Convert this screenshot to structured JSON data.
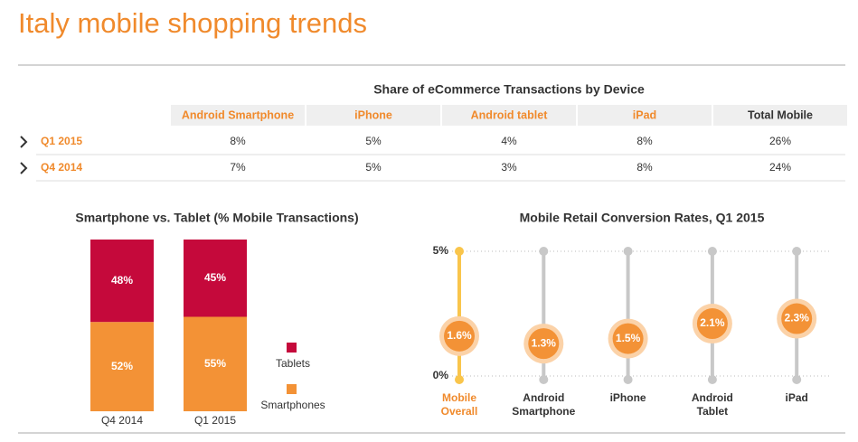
{
  "title": "Italy mobile shopping trends",
  "table": {
    "title": "Share of eCommerce Transactions by Device",
    "columns": [
      "Android Smartphone",
      "iPhone",
      "Android tablet",
      "iPad",
      "Total Mobile"
    ],
    "rows": [
      {
        "label": "Q1 2015",
        "cells": [
          "8%",
          "5%",
          "4%",
          "8%",
          "26%"
        ]
      },
      {
        "label": "Q4 2014",
        "cells": [
          "7%",
          "5%",
          "3%",
          "8%",
          "24%"
        ]
      }
    ]
  },
  "chart_data": [
    {
      "type": "stacked_bar",
      "title": "Smartphone vs. Tablet (% Mobile Transactions)",
      "categories": [
        "Q4 2014",
        "Q1 2015"
      ],
      "ylim": [
        0,
        100
      ],
      "series": [
        {
          "name": "Smartphones",
          "color": "#f39236",
          "values": [
            52,
            55
          ],
          "value_labels": [
            "52%",
            "55%"
          ]
        },
        {
          "name": "Tablets",
          "color": "#c5093b",
          "values": [
            48,
            45
          ],
          "value_labels": [
            "48%",
            "45%"
          ]
        }
      ]
    },
    {
      "type": "lollipop",
      "title": "Mobile Retail Conversion Rates, Q1 2015",
      "categories": [
        "Mobile Overall",
        "Android Smartphone",
        "iPhone",
        "Android Tablet",
        "iPad"
      ],
      "values": [
        1.6,
        1.3,
        1.5,
        2.1,
        2.3
      ],
      "value_labels": [
        "1.6%",
        "1.3%",
        "1.5%",
        "2.1%",
        "2.3%"
      ],
      "ylim": [
        0,
        5
      ],
      "yticks": [
        {
          "value": 0,
          "label": "0%"
        },
        {
          "value": 5,
          "label": "5%"
        }
      ],
      "color": "#f39236",
      "stem_color": "#c8c8c8",
      "highlight_index": 0,
      "highlight_color": "#f9c54b",
      "grid": true
    }
  ]
}
